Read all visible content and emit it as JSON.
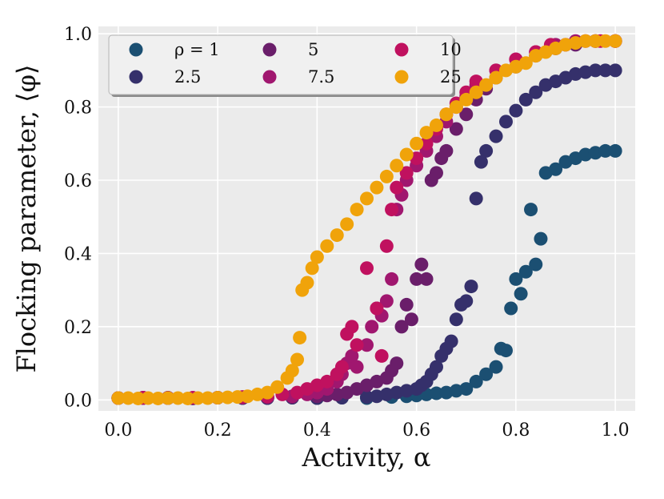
{
  "chart_data": {
    "type": "scatter",
    "title": "",
    "xlabel": "Activity, α",
    "ylabel": "Flocking parameter, ⟨φ⟩",
    "xlim": [
      -0.04,
      1.04
    ],
    "ylim": [
      -0.03,
      1.02
    ],
    "x_ticks": [
      0.0,
      0.2,
      0.4,
      0.6,
      0.8,
      1.0
    ],
    "x_tick_labels": [
      "0.0",
      "0.2",
      "0.4",
      "0.6",
      "0.8",
      "1.0"
    ],
    "y_ticks": [
      0.0,
      0.2,
      0.4,
      0.6,
      0.8,
      1.0
    ],
    "y_tick_labels": [
      "0.0",
      "0.2",
      "0.4",
      "0.6",
      "0.8",
      "1.0"
    ],
    "grid": true,
    "legend_position": "top-left",
    "series": [
      {
        "name": "ρ = 1",
        "color": "#1b4f72",
        "points": [
          [
            0.0,
            0.005
          ],
          [
            0.05,
            0.006
          ],
          [
            0.1,
            0.005
          ],
          [
            0.15,
            0.004
          ],
          [
            0.2,
            0.006
          ],
          [
            0.25,
            0.005
          ],
          [
            0.3,
            0.005
          ],
          [
            0.35,
            0.006
          ],
          [
            0.4,
            0.005
          ],
          [
            0.45,
            0.006
          ],
          [
            0.5,
            0.005
          ],
          [
            0.55,
            0.008
          ],
          [
            0.58,
            0.01
          ],
          [
            0.6,
            0.012
          ],
          [
            0.62,
            0.015
          ],
          [
            0.64,
            0.018
          ],
          [
            0.66,
            0.02
          ],
          [
            0.68,
            0.025
          ],
          [
            0.7,
            0.03
          ],
          [
            0.72,
            0.05
          ],
          [
            0.74,
            0.07
          ],
          [
            0.76,
            0.09
          ],
          [
            0.77,
            0.14
          ],
          [
            0.78,
            0.135
          ],
          [
            0.79,
            0.25
          ],
          [
            0.8,
            0.33
          ],
          [
            0.81,
            0.29
          ],
          [
            0.82,
            0.35
          ],
          [
            0.83,
            0.52
          ],
          [
            0.84,
            0.37
          ],
          [
            0.85,
            0.44
          ],
          [
            0.86,
            0.62
          ],
          [
            0.88,
            0.63
          ],
          [
            0.9,
            0.65
          ],
          [
            0.92,
            0.66
          ],
          [
            0.94,
            0.67
          ],
          [
            0.96,
            0.675
          ],
          [
            0.98,
            0.68
          ],
          [
            1.0,
            0.68
          ]
        ]
      },
      {
        "name": "2.5",
        "color": "#35306b",
        "points": [
          [
            0.0,
            0.005
          ],
          [
            0.05,
            0.005
          ],
          [
            0.1,
            0.006
          ],
          [
            0.15,
            0.005
          ],
          [
            0.2,
            0.006
          ],
          [
            0.25,
            0.005
          ],
          [
            0.3,
            0.005
          ],
          [
            0.35,
            0.006
          ],
          [
            0.4,
            0.005
          ],
          [
            0.45,
            0.006
          ],
          [
            0.5,
            0.008
          ],
          [
            0.52,
            0.01
          ],
          [
            0.54,
            0.015
          ],
          [
            0.56,
            0.02
          ],
          [
            0.58,
            0.025
          ],
          [
            0.6,
            0.03
          ],
          [
            0.61,
            0.04
          ],
          [
            0.62,
            0.05
          ],
          [
            0.63,
            0.07
          ],
          [
            0.64,
            0.09
          ],
          [
            0.65,
            0.12
          ],
          [
            0.66,
            0.14
          ],
          [
            0.67,
            0.16
          ],
          [
            0.68,
            0.22
          ],
          [
            0.69,
            0.26
          ],
          [
            0.7,
            0.27
          ],
          [
            0.71,
            0.31
          ],
          [
            0.72,
            0.55
          ],
          [
            0.73,
            0.65
          ],
          [
            0.74,
            0.68
          ],
          [
            0.76,
            0.72
          ],
          [
            0.78,
            0.76
          ],
          [
            0.8,
            0.79
          ],
          [
            0.82,
            0.82
          ],
          [
            0.84,
            0.84
          ],
          [
            0.86,
            0.86
          ],
          [
            0.88,
            0.87
          ],
          [
            0.9,
            0.88
          ],
          [
            0.92,
            0.89
          ],
          [
            0.94,
            0.895
          ],
          [
            0.96,
            0.9
          ],
          [
            0.98,
            0.9
          ],
          [
            1.0,
            0.9
          ]
        ]
      },
      {
        "name": "5",
        "color": "#6a1e6a",
        "points": [
          [
            0.0,
            0.005
          ],
          [
            0.05,
            0.006
          ],
          [
            0.1,
            0.005
          ],
          [
            0.15,
            0.005
          ],
          [
            0.2,
            0.006
          ],
          [
            0.25,
            0.006
          ],
          [
            0.3,
            0.007
          ],
          [
            0.35,
            0.008
          ],
          [
            0.4,
            0.01
          ],
          [
            0.42,
            0.012
          ],
          [
            0.44,
            0.015
          ],
          [
            0.46,
            0.02
          ],
          [
            0.48,
            0.03
          ],
          [
            0.5,
            0.04
          ],
          [
            0.52,
            0.05
          ],
          [
            0.54,
            0.06
          ],
          [
            0.55,
            0.08
          ],
          [
            0.56,
            0.1
          ],
          [
            0.57,
            0.2
          ],
          [
            0.58,
            0.26
          ],
          [
            0.59,
            0.22
          ],
          [
            0.6,
            0.33
          ],
          [
            0.61,
            0.37
          ],
          [
            0.62,
            0.33
          ],
          [
            0.63,
            0.6
          ],
          [
            0.64,
            0.62
          ],
          [
            0.65,
            0.66
          ],
          [
            0.66,
            0.68
          ],
          [
            0.68,
            0.74
          ],
          [
            0.7,
            0.78
          ],
          [
            0.72,
            0.82
          ],
          [
            0.74,
            0.85
          ],
          [
            0.76,
            0.88
          ],
          [
            0.8,
            0.91
          ],
          [
            0.84,
            0.94
          ],
          [
            0.88,
            0.96
          ],
          [
            0.92,
            0.97
          ],
          [
            0.96,
            0.98
          ],
          [
            1.0,
            0.98
          ]
        ]
      },
      {
        "name": "7.5",
        "color": "#a0176f",
        "points": [
          [
            0.0,
            0.005
          ],
          [
            0.05,
            0.005
          ],
          [
            0.1,
            0.006
          ],
          [
            0.15,
            0.005
          ],
          [
            0.2,
            0.006
          ],
          [
            0.25,
            0.007
          ],
          [
            0.3,
            0.008
          ],
          [
            0.35,
            0.01
          ],
          [
            0.38,
            0.015
          ],
          [
            0.4,
            0.02
          ],
          [
            0.42,
            0.03
          ],
          [
            0.44,
            0.05
          ],
          [
            0.45,
            0.07
          ],
          [
            0.46,
            0.1
          ],
          [
            0.47,
            0.12
          ],
          [
            0.48,
            0.09
          ],
          [
            0.5,
            0.15
          ],
          [
            0.51,
            0.2
          ],
          [
            0.52,
            0.25
          ],
          [
            0.53,
            0.23
          ],
          [
            0.54,
            0.27
          ],
          [
            0.55,
            0.33
          ],
          [
            0.56,
            0.52
          ],
          [
            0.57,
            0.56
          ],
          [
            0.58,
            0.6
          ],
          [
            0.6,
            0.64
          ],
          [
            0.62,
            0.68
          ],
          [
            0.64,
            0.72
          ],
          [
            0.66,
            0.76
          ],
          [
            0.68,
            0.8
          ],
          [
            0.7,
            0.83
          ],
          [
            0.72,
            0.86
          ],
          [
            0.76,
            0.9
          ],
          [
            0.8,
            0.93
          ],
          [
            0.84,
            0.95
          ],
          [
            0.88,
            0.97
          ],
          [
            0.92,
            0.98
          ],
          [
            0.96,
            0.98
          ],
          [
            1.0,
            0.98
          ]
        ]
      },
      {
        "name": "10",
        "color": "#c0115f",
        "points": [
          [
            0.0,
            0.005
          ],
          [
            0.05,
            0.006
          ],
          [
            0.1,
            0.005
          ],
          [
            0.15,
            0.006
          ],
          [
            0.2,
            0.006
          ],
          [
            0.25,
            0.008
          ],
          [
            0.3,
            0.01
          ],
          [
            0.33,
            0.015
          ],
          [
            0.36,
            0.02
          ],
          [
            0.38,
            0.03
          ],
          [
            0.4,
            0.04
          ],
          [
            0.42,
            0.05
          ],
          [
            0.44,
            0.07
          ],
          [
            0.45,
            0.09
          ],
          [
            0.46,
            0.18
          ],
          [
            0.47,
            0.2
          ],
          [
            0.48,
            0.15
          ],
          [
            0.5,
            0.36
          ],
          [
            0.52,
            0.25
          ],
          [
            0.53,
            0.12
          ],
          [
            0.54,
            0.42
          ],
          [
            0.55,
            0.52
          ],
          [
            0.56,
            0.58
          ],
          [
            0.58,
            0.62
          ],
          [
            0.6,
            0.66
          ],
          [
            0.62,
            0.7
          ],
          [
            0.64,
            0.74
          ],
          [
            0.66,
            0.78
          ],
          [
            0.68,
            0.81
          ],
          [
            0.7,
            0.84
          ],
          [
            0.72,
            0.87
          ],
          [
            0.76,
            0.9
          ],
          [
            0.8,
            0.93
          ],
          [
            0.84,
            0.95
          ],
          [
            0.87,
            0.97
          ],
          [
            0.9,
            0.97
          ],
          [
            0.94,
            0.98
          ],
          [
            0.97,
            0.98
          ],
          [
            1.0,
            0.98
          ]
        ]
      },
      {
        "name": "25",
        "color": "#f0a30a",
        "points": [
          [
            0.0,
            0.005
          ],
          [
            0.02,
            0.005
          ],
          [
            0.04,
            0.004
          ],
          [
            0.06,
            0.005
          ],
          [
            0.08,
            0.004
          ],
          [
            0.1,
            0.005
          ],
          [
            0.12,
            0.005
          ],
          [
            0.14,
            0.004
          ],
          [
            0.16,
            0.005
          ],
          [
            0.18,
            0.005
          ],
          [
            0.2,
            0.006
          ],
          [
            0.22,
            0.007
          ],
          [
            0.24,
            0.008
          ],
          [
            0.26,
            0.01
          ],
          [
            0.28,
            0.015
          ],
          [
            0.3,
            0.02
          ],
          [
            0.32,
            0.035
          ],
          [
            0.34,
            0.06
          ],
          [
            0.35,
            0.08
          ],
          [
            0.36,
            0.11
          ],
          [
            0.365,
            0.17
          ],
          [
            0.37,
            0.3
          ],
          [
            0.38,
            0.32
          ],
          [
            0.39,
            0.36
          ],
          [
            0.4,
            0.39
          ],
          [
            0.42,
            0.42
          ],
          [
            0.44,
            0.45
          ],
          [
            0.46,
            0.48
          ],
          [
            0.48,
            0.52
          ],
          [
            0.5,
            0.55
          ],
          [
            0.52,
            0.58
          ],
          [
            0.54,
            0.61
          ],
          [
            0.56,
            0.64
          ],
          [
            0.58,
            0.67
          ],
          [
            0.6,
            0.7
          ],
          [
            0.62,
            0.73
          ],
          [
            0.64,
            0.75
          ],
          [
            0.66,
            0.78
          ],
          [
            0.68,
            0.8
          ],
          [
            0.7,
            0.82
          ],
          [
            0.72,
            0.84
          ],
          [
            0.74,
            0.86
          ],
          [
            0.76,
            0.88
          ],
          [
            0.78,
            0.9
          ],
          [
            0.8,
            0.91
          ],
          [
            0.82,
            0.92
          ],
          [
            0.84,
            0.94
          ],
          [
            0.86,
            0.95
          ],
          [
            0.88,
            0.96
          ],
          [
            0.9,
            0.97
          ],
          [
            0.92,
            0.975
          ],
          [
            0.94,
            0.98
          ],
          [
            0.96,
            0.98
          ],
          [
            0.98,
            0.98
          ],
          [
            1.0,
            0.98
          ]
        ]
      }
    ]
  }
}
